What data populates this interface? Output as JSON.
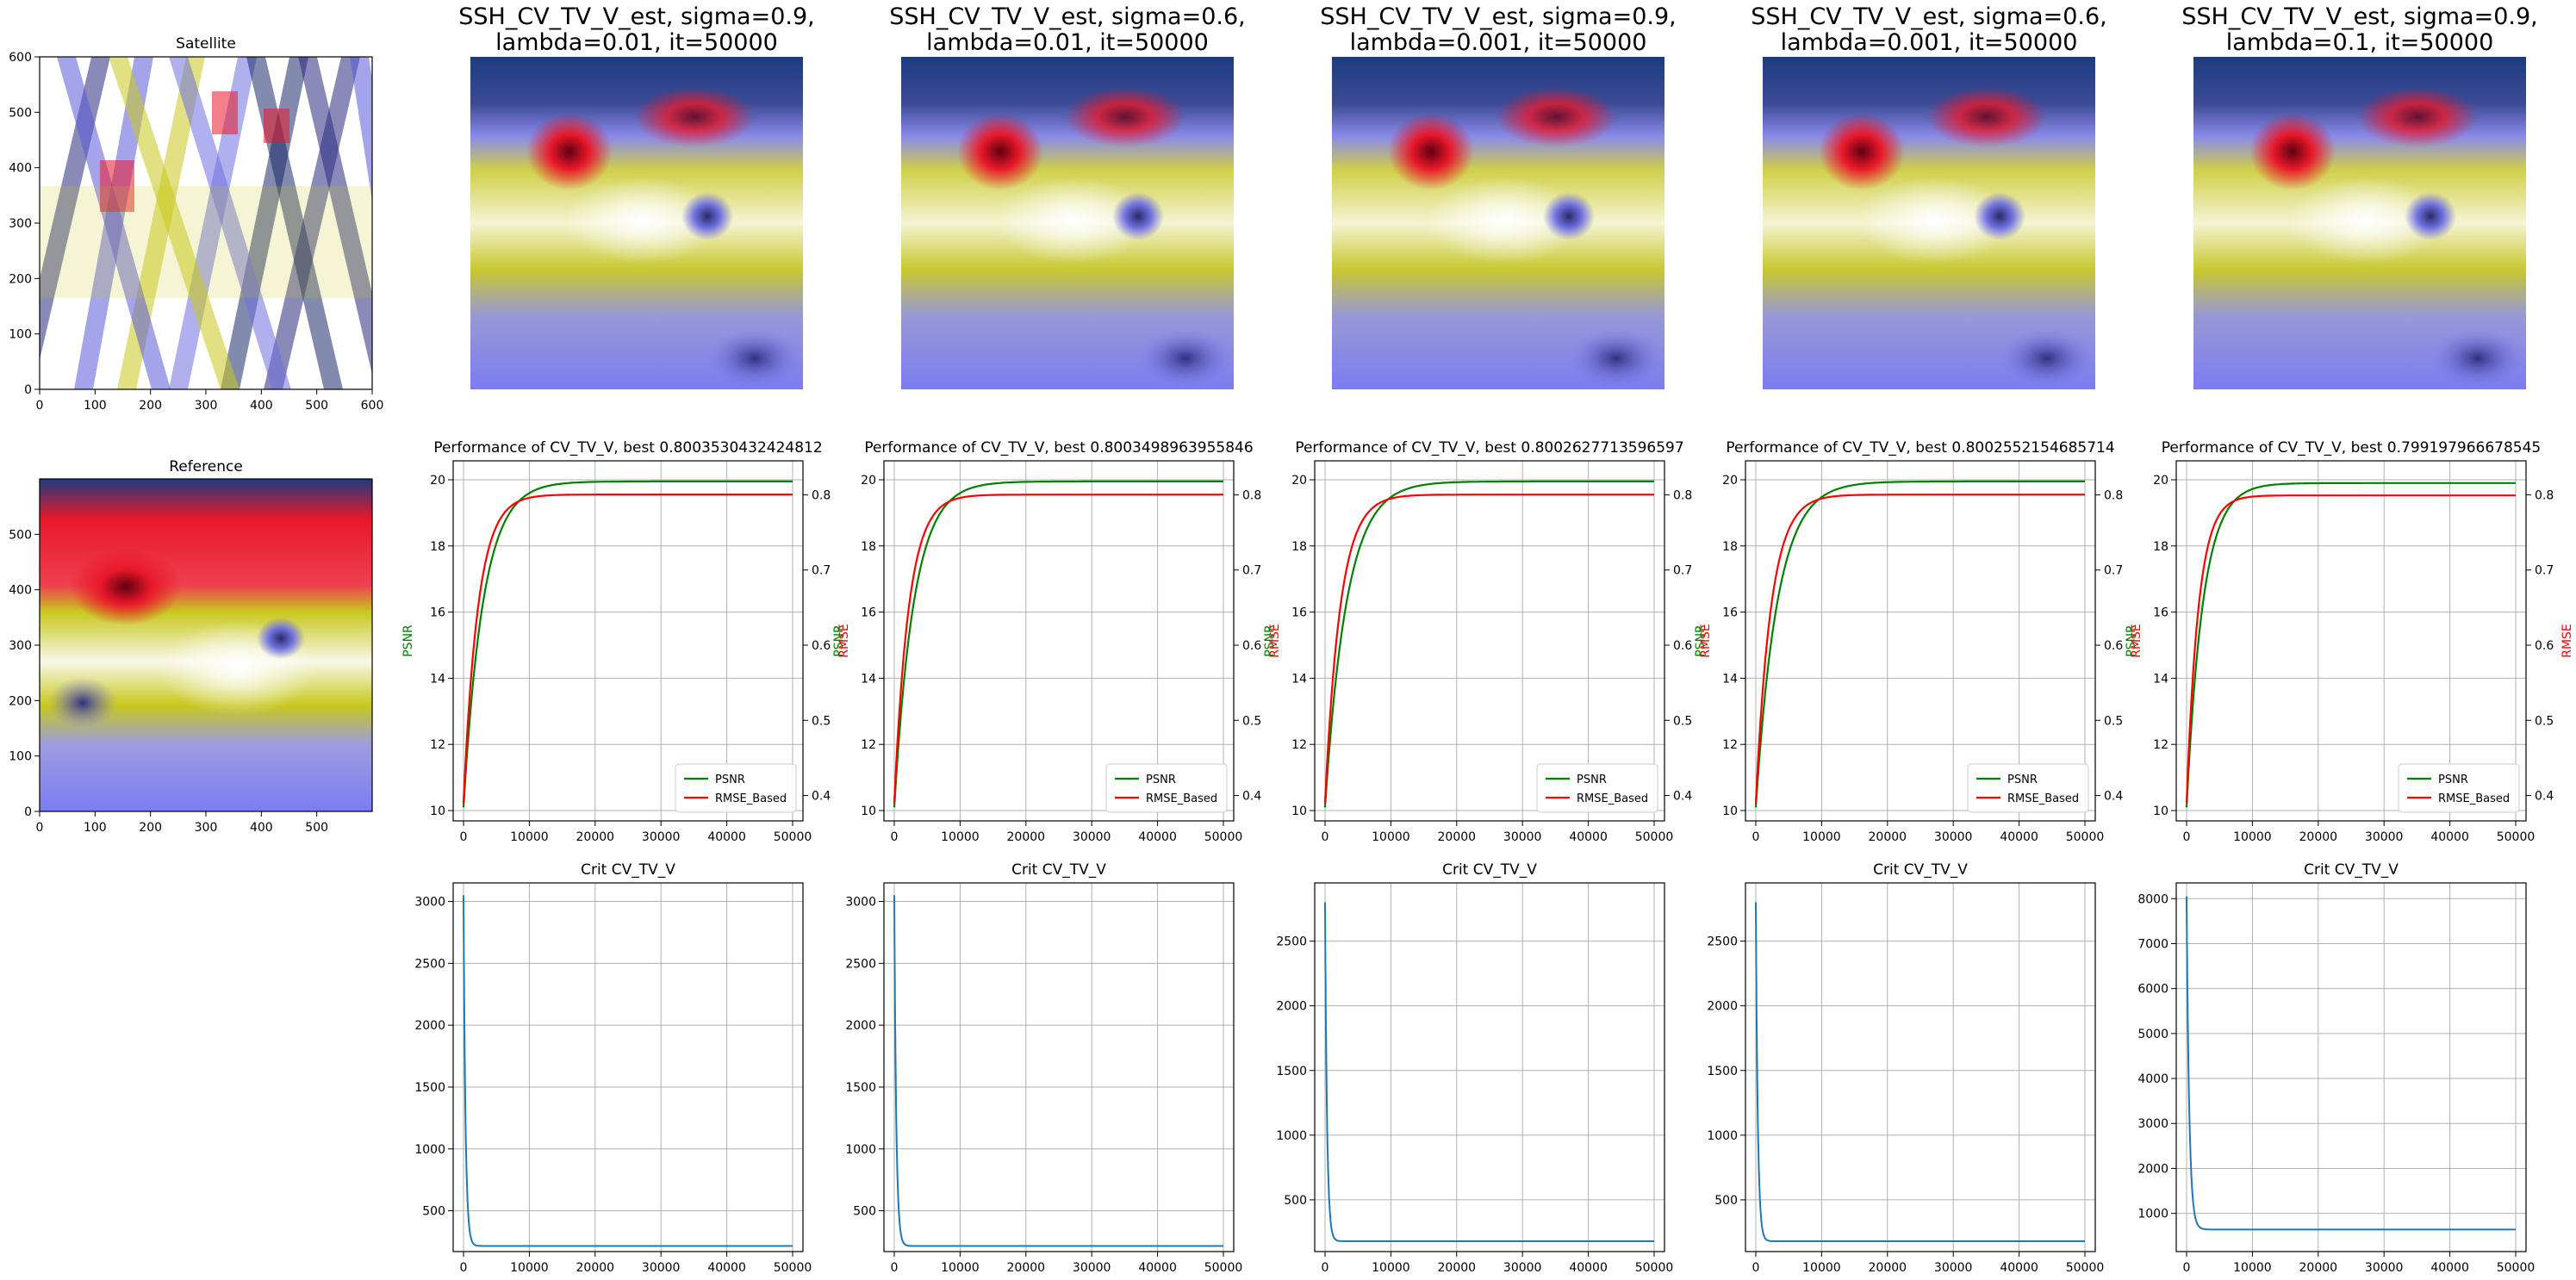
{
  "figure": {
    "satellite_title": "Satellite",
    "reference_title": "Reference"
  },
  "chart_data": [
    {
      "type": "image",
      "title": "Satellite",
      "x_ticks": [
        "0",
        "100",
        "200",
        "300",
        "400",
        "500",
        "600"
      ],
      "y_ticks": [
        "0",
        "100",
        "200",
        "300",
        "400",
        "500",
        "600"
      ],
      "xlim": [
        0,
        600
      ],
      "ylim": [
        0,
        600
      ]
    },
    {
      "type": "heatmap",
      "title": "Reference",
      "x_ticks": [
        "0",
        "100",
        "200",
        "300",
        "400",
        "500"
      ],
      "y_ticks": [
        "0",
        "100",
        "200",
        "300",
        "400",
        "500"
      ],
      "xlim": [
        0,
        600
      ],
      "ylim": [
        0,
        600
      ]
    },
    {
      "type": "heatmap",
      "title_lines": [
        "SSH_CV_TV_V_est, sigma=0.9,",
        "lambda=0.01, it=50000"
      ]
    },
    {
      "type": "heatmap",
      "title_lines": [
        "SSH_CV_TV_V_est, sigma=0.6,",
        "lambda=0.01, it=50000"
      ]
    },
    {
      "type": "heatmap",
      "title_lines": [
        "SSH_CV_TV_V_est, sigma=0.9,",
        "lambda=0.001, it=50000"
      ]
    },
    {
      "type": "heatmap",
      "title_lines": [
        "SSH_CV_TV_V_est, sigma=0.6,",
        "lambda=0.001, it=50000"
      ]
    },
    {
      "type": "heatmap",
      "title_lines": [
        "SSH_CV_TV_V_est, sigma=0.9,",
        "lambda=0.1, it=50000"
      ]
    },
    {
      "type": "line",
      "title": "Performance of CV_TV_V, best 0.8003530432424812",
      "ylabel": "PSNR",
      "y2label": "RMSE",
      "xlim": [
        0,
        50000
      ],
      "ylim": [
        10,
        20
      ],
      "y2lim": [
        0.38,
        0.82
      ],
      "x_ticks": [
        "0",
        "10000",
        "20000",
        "30000",
        "40000",
        "50000"
      ],
      "y_ticks": [
        "10",
        "12",
        "14",
        "16",
        "18",
        "20"
      ],
      "y2_ticks": [
        "0.4",
        "0.5",
        "0.6",
        "0.7",
        "0.8"
      ],
      "series": [
        {
          "name": "PSNR",
          "color": "#008000",
          "start": 10.1,
          "final": 19.95,
          "tau": 3000
        },
        {
          "name": "RMSE_Based",
          "color": "#ff0000",
          "start": 0.39,
          "final": 0.8004,
          "tau": 2200
        }
      ],
      "legend": "lower-right",
      "grid": true
    },
    {
      "type": "line",
      "title": "Performance of CV_TV_V, best 0.8003498963955846",
      "ylabel": "PSNR",
      "y2label": "RMSE",
      "xlim": [
        0,
        50000
      ],
      "ylim": [
        10,
        20
      ],
      "y2lim": [
        0.38,
        0.82
      ],
      "x_ticks": [
        "0",
        "10000",
        "20000",
        "30000",
        "40000",
        "50000"
      ],
      "y_ticks": [
        "10",
        "12",
        "14",
        "16",
        "18",
        "20"
      ],
      "y2_ticks": [
        "0.4",
        "0.5",
        "0.6",
        "0.7",
        "0.8"
      ],
      "series": [
        {
          "name": "PSNR",
          "color": "#008000",
          "start": 10.1,
          "final": 19.95,
          "tau": 3000
        },
        {
          "name": "RMSE_Based",
          "color": "#ff0000",
          "start": 0.39,
          "final": 0.8003,
          "tau": 2200
        }
      ],
      "legend": "lower-right",
      "grid": true
    },
    {
      "type": "line",
      "title": "Performance of CV_TV_V, best 0.8002627713596597",
      "ylabel": "PSNR",
      "y2label": "RMSE",
      "xlim": [
        0,
        50000
      ],
      "ylim": [
        10,
        20
      ],
      "y2lim": [
        0.38,
        0.82
      ],
      "x_ticks": [
        "0",
        "10000",
        "20000",
        "30000",
        "40000",
        "50000"
      ],
      "y_ticks": [
        "10",
        "12",
        "14",
        "16",
        "18",
        "20"
      ],
      "y2_ticks": [
        "0.4",
        "0.5",
        "0.6",
        "0.7",
        "0.8"
      ],
      "series": [
        {
          "name": "PSNR",
          "color": "#008000",
          "start": 10.1,
          "final": 19.95,
          "tau": 3300
        },
        {
          "name": "RMSE_Based",
          "color": "#ff0000",
          "start": 0.39,
          "final": 0.8003,
          "tau": 2300
        }
      ],
      "legend": "lower-right",
      "grid": true
    },
    {
      "type": "line",
      "title": "Performance of CV_TV_V, best 0.8002552154685714",
      "ylabel": "PSNR",
      "y2label": "RMSE",
      "xlim": [
        0,
        50000
      ],
      "ylim": [
        10,
        20
      ],
      "y2lim": [
        0.38,
        0.82
      ],
      "x_ticks": [
        "0",
        "10000",
        "20000",
        "30000",
        "40000",
        "50000"
      ],
      "y_ticks": [
        "10",
        "12",
        "14",
        "16",
        "18",
        "20"
      ],
      "y2_ticks": [
        "0.4",
        "0.5",
        "0.6",
        "0.7",
        "0.8"
      ],
      "series": [
        {
          "name": "PSNR",
          "color": "#008000",
          "start": 10.1,
          "final": 19.95,
          "tau": 3300
        },
        {
          "name": "RMSE_Based",
          "color": "#ff0000",
          "start": 0.39,
          "final": 0.8003,
          "tau": 2300
        }
      ],
      "legend": "lower-right",
      "grid": true
    },
    {
      "type": "line",
      "title": "Performance of CV_TV_V, best 0.799197966678545",
      "ylabel": "PSNR",
      "y2label": "RMSE",
      "xlim": [
        0,
        50000
      ],
      "ylim": [
        10,
        20
      ],
      "y2lim": [
        0.38,
        0.82
      ],
      "x_ticks": [
        "0",
        "10000",
        "20000",
        "30000",
        "40000",
        "50000"
      ],
      "y_ticks": [
        "10",
        "12",
        "14",
        "16",
        "18",
        "20"
      ],
      "y2_ticks": [
        "0.4",
        "0.5",
        "0.6",
        "0.7",
        "0.8"
      ],
      "series": [
        {
          "name": "PSNR",
          "color": "#008000",
          "start": 10.1,
          "final": 19.9,
          "tau": 2500
        },
        {
          "name": "RMSE_Based",
          "color": "#ff0000",
          "start": 0.39,
          "final": 0.7992,
          "tau": 1800
        }
      ],
      "legend": "lower-right",
      "grid": true
    },
    {
      "type": "line",
      "title": "Crit CV_TV_V",
      "xlim": [
        0,
        50000
      ],
      "ylim": [
        170,
        3150
      ],
      "x_ticks": [
        "0",
        "10000",
        "20000",
        "30000",
        "40000",
        "50000"
      ],
      "y_ticks": [
        500,
        1000,
        1500,
        2000,
        2500,
        3000
      ],
      "series": [
        {
          "color": "#1f77b4",
          "start": 3050,
          "final": 215,
          "tau": 300
        }
      ],
      "grid": true
    },
    {
      "type": "line",
      "title": "Crit CV_TV_V",
      "xlim": [
        0,
        50000
      ],
      "ylim": [
        170,
        3150
      ],
      "x_ticks": [
        "0",
        "10000",
        "20000",
        "30000",
        "40000",
        "50000"
      ],
      "y_ticks": [
        500,
        1000,
        1500,
        2000,
        2500,
        3000
      ],
      "series": [
        {
          "color": "#1f77b4",
          "start": 3050,
          "final": 215,
          "tau": 300
        }
      ],
      "grid": true
    },
    {
      "type": "line",
      "title": "Crit CV_TV_V",
      "xlim": [
        0,
        50000
      ],
      "ylim": [
        100,
        2950
      ],
      "x_ticks": [
        "0",
        "10000",
        "20000",
        "30000",
        "40000",
        "50000"
      ],
      "y_ticks": [
        500,
        1000,
        1500,
        2000,
        2500
      ],
      "series": [
        {
          "color": "#1f77b4",
          "start": 2800,
          "final": 180,
          "tau": 300
        }
      ],
      "grid": true
    },
    {
      "type": "line",
      "title": "Crit CV_TV_V",
      "xlim": [
        0,
        50000
      ],
      "ylim": [
        100,
        2950
      ],
      "x_ticks": [
        "0",
        "10000",
        "20000",
        "30000",
        "40000",
        "50000"
      ],
      "y_ticks": [
        500,
        1000,
        1500,
        2000,
        2500
      ],
      "series": [
        {
          "color": "#1f77b4",
          "start": 2800,
          "final": 180,
          "tau": 300
        }
      ],
      "grid": true
    },
    {
      "type": "line",
      "title": "Crit CV_TV_V",
      "xlim": [
        0,
        50000
      ],
      "ylim": [
        150,
        8350
      ],
      "x_ticks": [
        "0",
        "10000",
        "20000",
        "30000",
        "40000",
        "50000"
      ],
      "y_ticks": [
        1000,
        2000,
        3000,
        4000,
        5000,
        6000,
        7000,
        8000
      ],
      "series": [
        {
          "color": "#1f77b4",
          "start": 8050,
          "final": 640,
          "tau": 400
        }
      ],
      "grid": true
    }
  ],
  "colors": {
    "psnr": "#008000",
    "rmse": "#ff0000",
    "crit": "#1f77b4",
    "map_dark_blue": "#1c3c80",
    "map_red": "#e8182a",
    "map_yellow": "#c8c81e",
    "map_white": "#fafaf0",
    "map_light_blue": "#8080f0"
  }
}
